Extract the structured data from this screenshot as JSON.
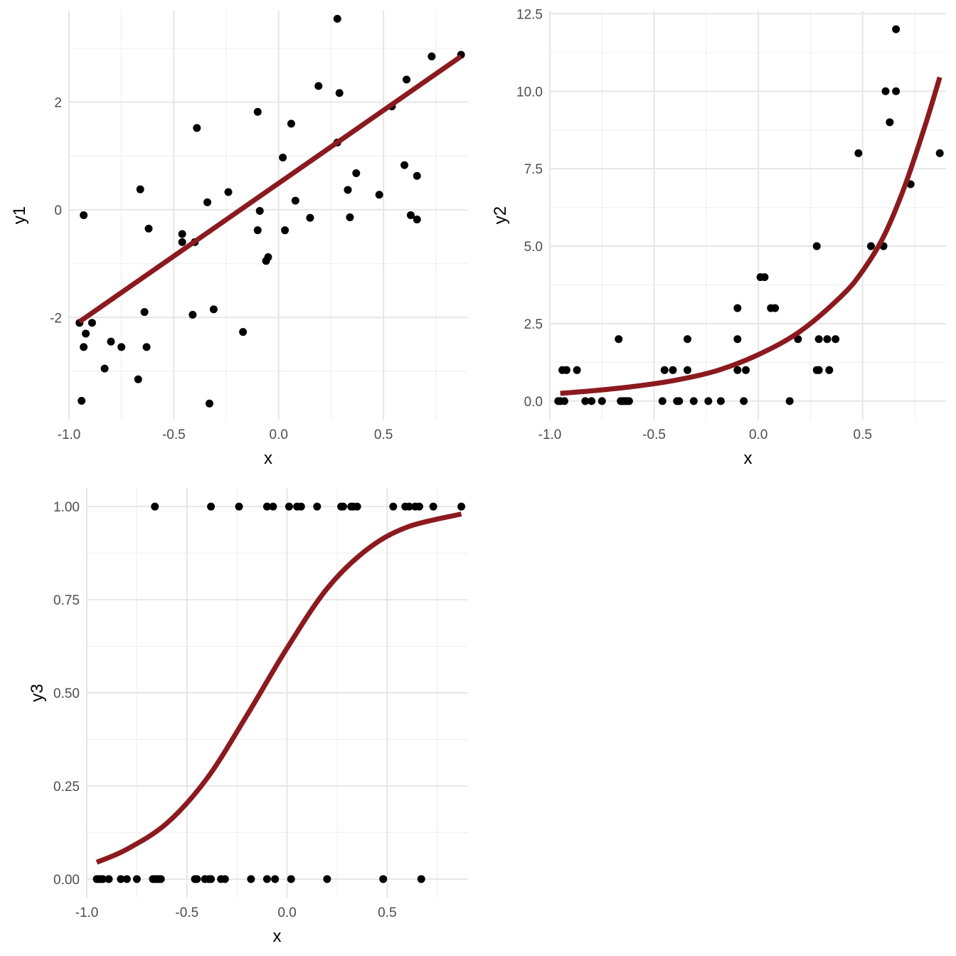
{
  "figure": {
    "background": "#ffffff",
    "grid_color": "#ebebeb"
  },
  "chart_data": [
    {
      "type": "scatter",
      "panel": "top-left",
      "xlabel": "x",
      "ylabel": "y1",
      "xlim": [
        -1.0,
        0.9
      ],
      "ylim": [
        -3.9,
        3.7
      ],
      "xticks": [
        -1.0,
        -0.5,
        0.0,
        0.5
      ],
      "xtick_labels": [
        "-1.0",
        "-0.5",
        "0.0",
        "0.5"
      ],
      "yticks": [
        -2,
        0,
        2
      ],
      "ytick_labels": [
        "-2",
        "0",
        "2"
      ],
      "grid": true,
      "point_color": "#000000",
      "line_color": "#8b1a1f",
      "points": {
        "x": [
          -0.95,
          -0.94,
          -0.93,
          -0.93,
          -0.92,
          -0.89,
          -0.83,
          -0.8,
          -0.75,
          -0.67,
          -0.66,
          -0.64,
          -0.63,
          -0.62,
          -0.46,
          -0.46,
          -0.4,
          -0.39,
          -0.41,
          -0.34,
          -0.33,
          -0.31,
          -0.24,
          -0.17,
          -0.1,
          -0.1,
          -0.09,
          -0.06,
          -0.05,
          0.02,
          0.03,
          0.06,
          0.08,
          0.15,
          0.19,
          0.28,
          0.29,
          0.28,
          0.33,
          0.34,
          0.37,
          0.48,
          0.54,
          0.6,
          0.61,
          0.63,
          0.66,
          0.66,
          0.73,
          0.87
        ],
        "y": [
          -2.1,
          -3.55,
          -2.55,
          -0.1,
          -2.3,
          -2.1,
          -2.95,
          -2.45,
          -2.55,
          -3.15,
          0.38,
          -1.9,
          -2.55,
          -0.35,
          -0.45,
          -0.6,
          -0.6,
          1.52,
          -1.95,
          0.14,
          -3.6,
          -1.85,
          0.33,
          -2.27,
          1.82,
          -0.38,
          -0.02,
          -0.95,
          -0.88,
          0.97,
          -0.38,
          1.6,
          0.17,
          -0.15,
          2.3,
          1.25,
          2.17,
          3.55,
          0.37,
          -0.14,
          0.68,
          0.28,
          1.92,
          0.83,
          2.42,
          -0.1,
          0.63,
          -0.18,
          2.85,
          2.88
        ]
      },
      "fit": {
        "x": [
          -0.95,
          0.87
        ],
        "y": [
          -2.08,
          2.85
        ]
      }
    },
    {
      "type": "scatter",
      "panel": "top-right",
      "xlabel": "x",
      "ylabel": "y2",
      "xlim": [
        -1.0,
        0.9
      ],
      "ylim": [
        -0.6,
        12.6
      ],
      "xticks": [
        -1.0,
        -0.5,
        0.0,
        0.5
      ],
      "xtick_labels": [
        "-1.0",
        "-0.5",
        "0.0",
        "0.5"
      ],
      "yticks": [
        0.0,
        2.5,
        5.0,
        7.5,
        10.0,
        12.5
      ],
      "ytick_labels": [
        "0.0",
        "2.5",
        "5.0",
        "7.5",
        "10.0",
        "12.5"
      ],
      "grid": true,
      "point_color": "#000000",
      "line_color": "#8b1a1f",
      "points": {
        "x": [
          -0.96,
          -0.95,
          -0.94,
          -0.93,
          -0.92,
          -0.87,
          -0.83,
          -0.8,
          -0.75,
          -0.67,
          -0.66,
          -0.65,
          -0.64,
          -0.63,
          -0.62,
          -0.46,
          -0.45,
          -0.41,
          -0.39,
          -0.38,
          -0.34,
          -0.34,
          -0.31,
          -0.24,
          -0.18,
          -0.1,
          -0.1,
          -0.1,
          -0.07,
          -0.06,
          0.01,
          0.03,
          0.06,
          0.08,
          0.15,
          0.19,
          0.28,
          0.28,
          0.29,
          0.29,
          0.33,
          0.34,
          0.37,
          0.48,
          0.54,
          0.6,
          0.61,
          0.63,
          0.66,
          0.66,
          0.73,
          0.87
        ],
        "y": [
          0,
          0,
          1,
          0,
          1,
          1,
          0,
          0,
          0,
          2,
          0,
          0,
          0,
          0,
          0,
          0,
          1,
          1,
          0,
          0,
          1,
          2,
          0,
          0,
          0,
          3,
          2,
          1,
          0,
          1,
          4,
          4,
          3,
          3,
          0,
          2,
          5,
          1,
          2,
          1,
          2,
          1,
          2,
          8,
          5,
          5,
          10,
          9,
          10,
          12,
          7,
          8
        ]
      },
      "fit": {
        "x": [
          -0.95,
          -0.8,
          -0.6,
          -0.4,
          -0.2,
          0.0,
          0.2,
          0.4,
          0.5,
          0.6,
          0.7,
          0.8,
          0.87
        ],
        "y": [
          0.25,
          0.33,
          0.47,
          0.67,
          0.98,
          1.5,
          2.25,
          3.4,
          4.2,
          5.3,
          6.9,
          8.9,
          10.45
        ]
      }
    },
    {
      "type": "scatter",
      "panel": "bottom-left",
      "xlabel": "x",
      "ylabel": "y3",
      "xlim": [
        -1.0,
        0.9
      ],
      "ylim": [
        -0.05,
        1.05
      ],
      "xticks": [
        -1.0,
        -0.5,
        0.0,
        0.5
      ],
      "xtick_labels": [
        "-1.0",
        "-0.5",
        "0.0",
        "0.5"
      ],
      "yticks": [
        0.0,
        0.25,
        0.5,
        0.75,
        1.0
      ],
      "ytick_labels": [
        "0.00",
        "0.25",
        "0.50",
        "0.75",
        "1.00"
      ],
      "grid": true,
      "point_color": "#000000",
      "line_color": "#8b1a1f",
      "points": {
        "x": [
          -0.95,
          -0.94,
          -0.93,
          -0.92,
          -0.89,
          -0.83,
          -0.8,
          -0.75,
          -0.67,
          -0.66,
          -0.65,
          -0.64,
          -0.63,
          -0.46,
          -0.45,
          -0.41,
          -0.39,
          -0.38,
          -0.33,
          -0.31,
          -0.18,
          -0.1,
          -0.06,
          0.02,
          0.2,
          0.48,
          0.67,
          -0.66,
          -0.38,
          -0.24,
          -0.1,
          -0.07,
          0.01,
          0.05,
          0.07,
          0.15,
          0.27,
          0.28,
          0.32,
          0.33,
          0.35,
          0.53,
          0.59,
          0.61,
          0.64,
          0.66,
          0.73,
          0.87
        ],
        "y": [
          0,
          0,
          0,
          0,
          0,
          0,
          0,
          0,
          0,
          0,
          0,
          0,
          0,
          0,
          0,
          0,
          0,
          0,
          0,
          0,
          0,
          0,
          0,
          0,
          0,
          0,
          0,
          1,
          1,
          1,
          1,
          1,
          1,
          1,
          1,
          1,
          1,
          1,
          1,
          1,
          1,
          1,
          1,
          1,
          1,
          1,
          1,
          1
        ]
      },
      "fit": {
        "x": [
          -0.95,
          -0.8,
          -0.6,
          -0.4,
          -0.2,
          0.0,
          0.2,
          0.4,
          0.6,
          0.87
        ],
        "y": [
          0.045,
          0.08,
          0.15,
          0.27,
          0.44,
          0.62,
          0.78,
          0.885,
          0.945,
          0.98
        ]
      }
    }
  ]
}
